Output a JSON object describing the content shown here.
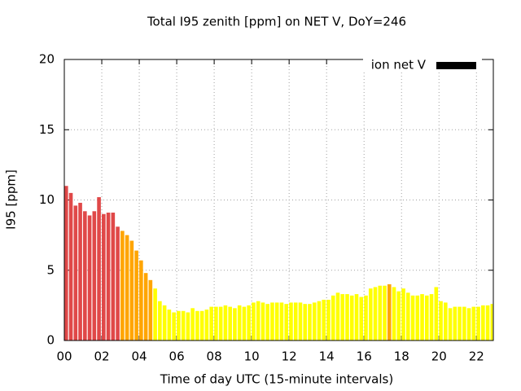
{
  "chart_data": {
    "type": "bar",
    "title": "Total I95 zenith [ppm] on NET V, DoY=246",
    "xlabel": "Time of day UTC (15-minute intervals)",
    "ylabel": "I95 [ppm]",
    "x": [
      0,
      0.25,
      0.5,
      0.75,
      1,
      1.25,
      1.5,
      1.75,
      2,
      2.25,
      2.5,
      2.75,
      3,
      3.25,
      3.5,
      3.75,
      4,
      4.25,
      4.5,
      4.75,
      5,
      5.25,
      5.5,
      5.75,
      6,
      6.25,
      6.5,
      6.75,
      7,
      7.25,
      7.5,
      7.75,
      8,
      8.25,
      8.5,
      8.75,
      9,
      9.25,
      9.5,
      9.75,
      10,
      10.25,
      10.5,
      10.75,
      11,
      11.25,
      11.5,
      11.75,
      12,
      12.25,
      12.5,
      12.75,
      13,
      13.25,
      13.5,
      13.75,
      14,
      14.25,
      14.5,
      14.75,
      15,
      15.25,
      15.5,
      15.75,
      16,
      16.25,
      16.5,
      16.75,
      17,
      17.25,
      17.5,
      17.75,
      18,
      18.25,
      18.5,
      18.75,
      19,
      19.25,
      19.5,
      19.75,
      20,
      20.25,
      20.5,
      20.75,
      21,
      21.25,
      21.5,
      21.75,
      22,
      22.25,
      22.5,
      22.75
    ],
    "series": [
      {
        "name": "ion net V",
        "color": "#000000",
        "values": [
          11.0,
          10.5,
          9.6,
          9.8,
          9.2,
          8.9,
          9.2,
          10.2,
          9.0,
          9.1,
          9.1,
          8.1,
          7.8,
          7.5,
          7.1,
          6.4,
          5.7,
          4.8,
          4.3,
          3.7,
          2.8,
          2.5,
          2.2,
          2.0,
          2.1,
          2.1,
          2.0,
          2.3,
          2.1,
          2.1,
          2.2,
          2.4,
          2.4,
          2.4,
          2.5,
          2.4,
          2.3,
          2.5,
          2.4,
          2.5,
          2.7,
          2.8,
          2.7,
          2.6,
          2.7,
          2.7,
          2.7,
          2.6,
          2.7,
          2.7,
          2.7,
          2.6,
          2.6,
          2.7,
          2.8,
          2.9,
          2.9,
          3.2,
          3.4,
          3.3,
          3.3,
          3.2,
          3.3,
          3.1,
          3.2,
          3.7,
          3.8,
          3.9,
          3.9,
          4.0,
          3.8,
          3.5,
          3.7,
          3.4,
          3.2,
          3.2,
          3.3,
          3.2,
          3.3,
          3.8,
          2.8,
          2.7,
          2.3,
          2.4,
          2.4,
          2.4,
          2.3,
          2.4,
          2.4,
          2.5,
          2.5,
          2.6
        ],
        "colors": [
          "#e04848",
          "#e04848",
          "#e04848",
          "#e04848",
          "#e04848",
          "#e04848",
          "#e04848",
          "#e04848",
          "#e04848",
          "#e04848",
          "#e04848",
          "#e04848",
          "#ffa500",
          "#ffa500",
          "#ffa500",
          "#ffa500",
          "#ffa500",
          "#ffa500",
          "#ffa500",
          "#ffff00",
          "#ffff00",
          "#ffff00",
          "#ffff00",
          "#ffff00",
          "#ffff00",
          "#ffff00",
          "#ffff00",
          "#ffff00",
          "#ffff00",
          "#ffff00",
          "#ffff00",
          "#ffff00",
          "#ffff00",
          "#ffff00",
          "#ffff00",
          "#ffff00",
          "#ffff00",
          "#ffff00",
          "#ffff00",
          "#ffff00",
          "#ffff00",
          "#ffff00",
          "#ffff00",
          "#ffff00",
          "#ffff00",
          "#ffff00",
          "#ffff00",
          "#ffff00",
          "#ffff00",
          "#ffff00",
          "#ffff00",
          "#ffff00",
          "#ffff00",
          "#ffff00",
          "#ffff00",
          "#ffff00",
          "#ffff00",
          "#ffff00",
          "#ffff00",
          "#ffff00",
          "#ffff00",
          "#ffff00",
          "#ffff00",
          "#ffff00",
          "#ffff00",
          "#ffff00",
          "#ffff00",
          "#ffff00",
          "#ffff00",
          "#ffa500",
          "#ffff00",
          "#ffff00",
          "#ffff00",
          "#ffff00",
          "#ffff00",
          "#ffff00",
          "#ffff00",
          "#ffff00",
          "#ffff00",
          "#ffff00",
          "#ffff00",
          "#ffff00",
          "#ffff00",
          "#ffff00",
          "#ffff00",
          "#ffff00",
          "#ffff00",
          "#ffff00",
          "#ffff00",
          "#ffff00",
          "#ffff00",
          "#ffff00"
        ]
      }
    ],
    "bar_width": 0.25,
    "xlim": [
      0,
      22.9
    ],
    "xticks": [
      {
        "value": 0,
        "label": "00"
      },
      {
        "value": 2,
        "label": "02"
      },
      {
        "value": 4,
        "label": "04"
      },
      {
        "value": 6,
        "label": "06"
      },
      {
        "value": 8,
        "label": "08"
      },
      10,
      12,
      14,
      16,
      18,
      20,
      22
    ],
    "ylim": [
      0,
      20
    ],
    "yticks": [
      0,
      5,
      10,
      15,
      20
    ],
    "grid": true,
    "legend": "top-right"
  }
}
